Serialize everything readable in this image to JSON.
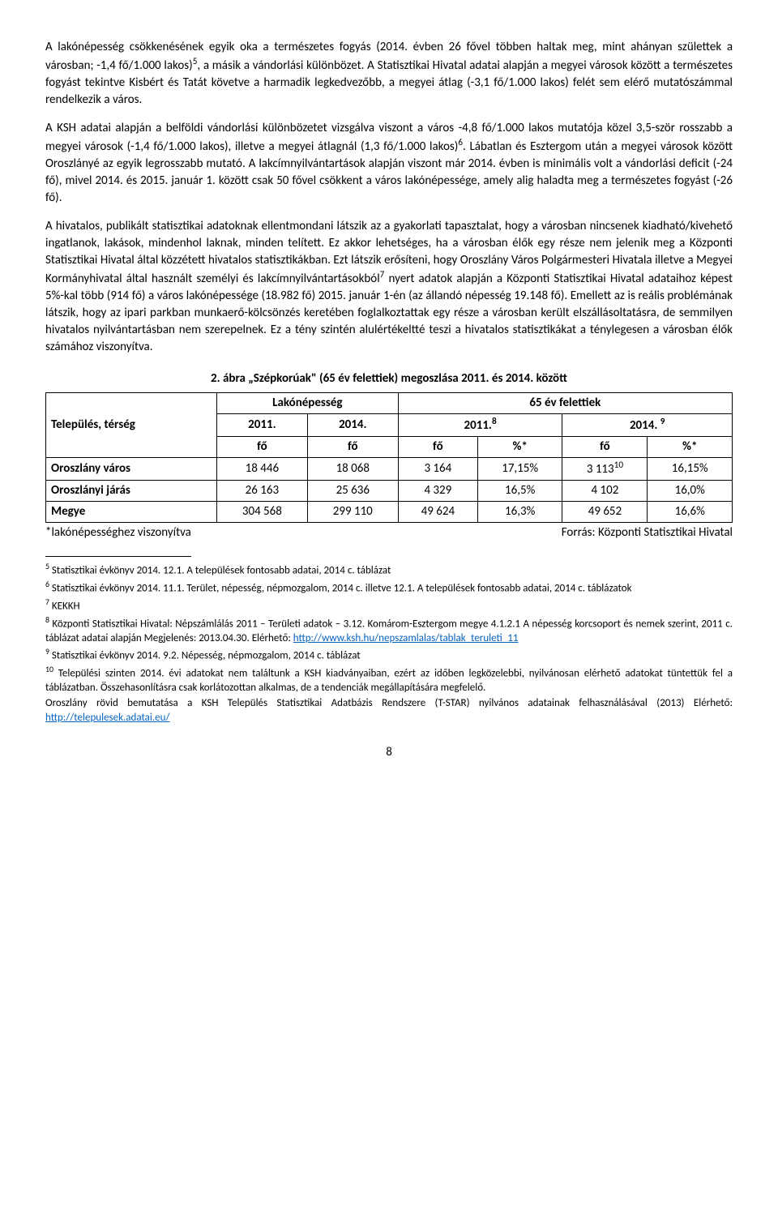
{
  "para1": {
    "t1": "A lakónépesség csökkenésének egyik oka a természetes fogyás (2014. évben 26 fővel többen haltak meg, mint ahányan születtek a városban; -1,4 fő/1.000 lakos)",
    "s1": "5",
    "t2": ", a másik a vándorlási különbözet. A Statisztikai Hivatal adatai alapján a megyei városok között a természetes fogyást tekintve Kisbért és Tatát követve a harmadik legkedvezőbb, a megyei átlag (-3,1 fő/1.000 lakos) felét sem elérő mutatószámmal rendelkezik a város."
  },
  "para2": {
    "t1": "A KSH adatai alapján a belföldi vándorlási különbözetet vizsgálva viszont a város -4,8 fő/1.000 lakos mutatója közel 3,5-ször rosszabb a megyei városok (-1,4 fő/1.000 lakos), illetve a megyei átlagnál (1,3 fő/1.000 lakos)",
    "s1": "6",
    "t2": ". Lábatlan és Esztergom után a megyei városok között Oroszlányé az egyik legrosszabb mutató. A lakcímnyilvántartások alapján viszont már 2014. évben is minimális volt a vándorlási deficit (-24 fő), mivel 2014. és 2015. január 1. között csak 50 fővel csökkent a város lakónépessége, amely alig haladta meg a természetes fogyást (-26 fő)."
  },
  "para3": {
    "t1": "A hivatalos, publikált statisztikai adatoknak ellentmondani látszik az a gyakorlati tapasztalat, hogy a városban nincsenek kiadható/kivehető ingatlanok, lakások, mindenhol laknak, minden telített. Ez akkor lehetséges, ha a városban élők egy része nem jelenik meg a Központi Statisztikai Hivatal által közzétett hivatalos statisztikákban. Ezt látszik erősíteni, hogy Oroszlány Város Polgármesteri Hivatala illetve a Megyei Kormányhivatal által használt személyi és lakcímnyilvántartásokból",
    "s1": "7",
    "t2": " nyert adatok alapján a Központi Statisztikai Hivatal adataihoz képest 5%-kal több (914 fő) a város lakónépessége (18.982 fő) 2015. január 1-én (az állandó népesség 19.148 fő). Emellett az is reális problémának látszik, hogy az ipari parkban munkaerő-kölcsönzés keretében foglalkoztattak egy része a városban került elszállásoltatásra, de semmilyen hivatalos nyilvántartásban nem szerepelnek. Ez a tény szintén alulértékeltté teszi a hivatalos statisztikákat a ténylegesen a városban élők számához viszonyítva."
  },
  "fig_title": "2. ábra „Szépkorúak\" (65 év felettiek) megoszlása 2011. és 2014. között",
  "hdr": {
    "rowspan_col": "Település, térség",
    "group1": "Lakónépesség",
    "group2": "65 év felettiek",
    "y2011": "2011.",
    "y2014": "2014.",
    "y2011s": "2011.",
    "sup8": "8",
    "y2014s": "2014. ",
    "sup9": "9",
    "fo": "fő",
    "pct": "%*"
  },
  "rows": [
    {
      "label": "Oroszlány város",
      "a": "18 446",
      "b": "18 068",
      "c": "3 164",
      "d": "17,15%",
      "e": "3 113",
      "esup": "10",
      "f": "16,15%"
    },
    {
      "label": "Oroszlányi járás",
      "a": "26 163",
      "b": "25 636",
      "c": "4 329",
      "d": "16,5%",
      "e": "4 102",
      "esup": "",
      "f": "16,0%"
    },
    {
      "label": "Megye",
      "a": "304 568",
      "b": "299 110",
      "c": "49 624",
      "d": "16,3%",
      "e": "49 652",
      "esup": "",
      "f": "16,6%"
    }
  ],
  "table_note_left": "*lakónépességhez viszonyítva",
  "table_note_right": "Forrás: Központi Statisztikai Hivatal",
  "fn": {
    "f5": "Statisztikai évkönyv 2014. 12.1. A települések fontosabb adatai, 2014 c. táblázat",
    "f6": "Statisztikai évkönyv 2014. 11.1. Terület, népesség, népmozgalom, 2014 c. illetve 12.1. A települések fontosabb adatai, 2014 c. táblázatok",
    "f7": "KEKKH",
    "f8a": "Központi Statisztikai Hivatal: Népszámlálás 2011 – Területi adatok – 3.12. Komárom-Esztergom megye 4.1.2.1 A népesség korcsoport és nemek szerint, 2011 c. táblázat adatai alapján Megjelenés: 2013.04.30. Elérhető: ",
    "f8link": "http://www.ksh.hu/nepszamlalas/tablak_teruleti_11",
    "f9": "Statisztikai évkönyv 2014. 9.2. Népesség, népmozgalom, 2014 c. táblázat",
    "f10": "Települési szinten 2014. évi adatokat nem találtunk a KSH kiadványaiban, ezért az időben legközelebbi, nyilvánosan elérhető adatokat tüntettük fel a táblázatban. Összehasonlításra csak korlátozottan alkalmas, de a tendenciák megállapítására megfelelő.",
    "closing_a": "Oroszlány rövid bemutatása a KSH Település Statisztikai Adatbázis Rendszere (T-STAR) nyilvános adatainak felhasználásával (2013) Elérhető: ",
    "closing_link": "http://telepulesek.adatai.eu/"
  },
  "pagenum": "8"
}
